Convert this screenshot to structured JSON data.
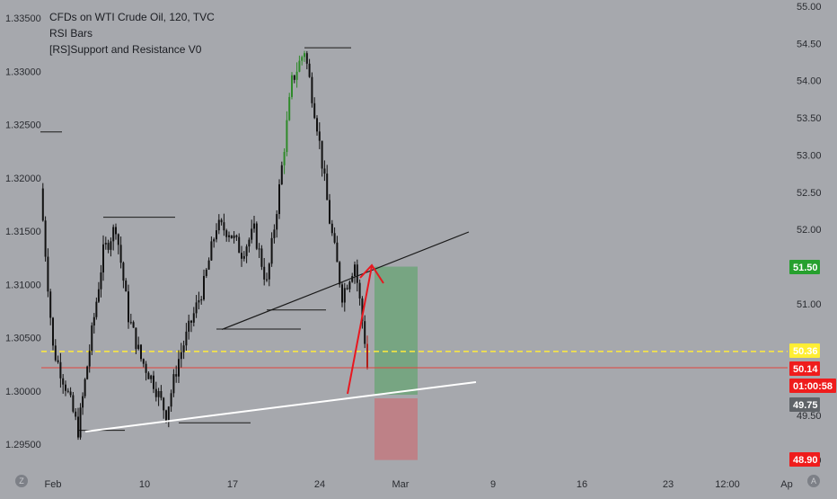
{
  "legend": {
    "title": "CFDs on WTI Crude Oil, 120, TVC",
    "indicator_1": "RSI Bars",
    "indicator_2": "[RS]Support and Resistance V0"
  },
  "colors": {
    "background": "#a6a8ad",
    "candle": "#111111",
    "candle_up_overbought": "#2f8a2a",
    "candle_down_oversold": "#b0201a",
    "trendline": "#1a1a1a",
    "support_line": "#ffffff",
    "alert_line": "#ffeb3b",
    "price_line": "#e0443d",
    "profit_zone": "#6fa47a",
    "loss_zone": "#c27a80",
    "arrow": "#e8171f",
    "tag_green": "#26a02e",
    "tag_yellow": "#ffee33",
    "tag_red": "#ef1c1c",
    "tag_gray": "#5f6368"
  },
  "icons": {
    "left_corner": "tradingview-z-icon",
    "right_corner": "auto-scale-icon"
  },
  "chart_data": {
    "type": "candlestick",
    "title": "CFDs on WTI Crude Oil, 120, TVC",
    "x_ticks": [
      "Feb",
      "10",
      "17",
      "24",
      "Mar",
      "9",
      "16",
      "23",
      "12:00",
      "Ap"
    ],
    "left_axis": {
      "ticks": [
        "1.33500",
        "1.33000",
        "1.32500",
        "1.32000",
        "1.31500",
        "1.31000",
        "1.30500",
        "1.30000",
        "1.29500"
      ],
      "range": [
        1.2935,
        1.3362
      ]
    },
    "right_axis": {
      "ticks": [
        "55.00",
        "54.50",
        "54.00",
        "53.50",
        "53.00",
        "52.50",
        "52.00",
        "51.00",
        "49.50",
        "48.90"
      ],
      "range": [
        48.77,
        55.05
      ]
    },
    "price_path": [
      {
        "date": "Jan 31",
        "price": 1.319
      },
      {
        "date": "Feb 1",
        "price": 1.304
      },
      {
        "date": "Feb 2",
        "price": 1.3005
      },
      {
        "date": "Feb 3",
        "price": 1.2963
      },
      {
        "date": "Feb 5",
        "price": 1.313
      },
      {
        "date": "Feb 6",
        "price": 1.3155
      },
      {
        "date": "Feb 7",
        "price": 1.307
      },
      {
        "date": "Feb 8",
        "price": 1.303
      },
      {
        "date": "Feb 9",
        "price": 1.3008
      },
      {
        "date": "Feb 10",
        "price": 1.2978
      },
      {
        "date": "Feb 11",
        "price": 1.303
      },
      {
        "date": "Feb 12",
        "price": 1.3065
      },
      {
        "date": "Feb 13",
        "price": 1.31
      },
      {
        "date": "Feb 14",
        "price": 1.3155
      },
      {
        "date": "Feb 15",
        "price": 1.315
      },
      {
        "date": "Feb 16",
        "price": 1.313
      },
      {
        "date": "Feb 17",
        "price": 1.315
      },
      {
        "date": "Feb 18",
        "price": 1.31
      },
      {
        "date": "Feb 19",
        "price": 1.319
      },
      {
        "date": "Feb 20",
        "price": 1.329
      },
      {
        "date": "Feb 21",
        "price": 1.332
      },
      {
        "date": "Feb 22",
        "price": 1.325
      },
      {
        "date": "Feb 23",
        "price": 1.316
      },
      {
        "date": "Feb 24",
        "price": 1.309
      },
      {
        "date": "Feb 25",
        "price": 1.312
      },
      {
        "date": "Feb 26",
        "price": 1.303
      },
      {
        "date": "Feb 26",
        "price": 1.3022
      }
    ],
    "resistance_levels": [
      {
        "from": "Jan 31",
        "to": "Feb 1",
        "price": 1.3243
      },
      {
        "from": "Feb 5",
        "to": "Feb 10",
        "price": 1.3163
      },
      {
        "from": "Feb 21",
        "to": "Feb 24",
        "price": 1.3322
      },
      {
        "from": "Feb 18",
        "to": "Feb 22",
        "price": 1.3076
      },
      {
        "from": "Feb 14",
        "to": "Feb 20",
        "price": 1.3058
      },
      {
        "from": "Feb 11",
        "to": "Feb 16",
        "price": 1.297
      },
      {
        "from": "Feb 3",
        "to": "Feb 6",
        "price": 1.2963
      }
    ],
    "trendlines": [
      {
        "name": "resistance",
        "from": {
          "date": "Feb 14",
          "price": 1.3061
        },
        "to": {
          "date": "Mar 7",
          "price": 1.315
        }
      },
      {
        "name": "support",
        "from": {
          "date": "Feb 3",
          "price": 1.2963
        },
        "to": {
          "date": "Mar 7",
          "price": 1.3011
        }
      }
    ],
    "long_position": {
      "entry_left": 50.14,
      "target": 51.5,
      "stop": 48.9,
      "start": "Feb 26",
      "end": "Mar 1"
    },
    "price_tags": [
      {
        "label": "51.50",
        "value": 51.5,
        "color": "green"
      },
      {
        "label": "50.36",
        "value": 50.36,
        "color": "yellow"
      },
      {
        "label": "50.14",
        "value": 50.14,
        "color": "red"
      },
      {
        "label": "01:00:58",
        "value": 49.93,
        "color": "red"
      },
      {
        "label": "49.75",
        "value": 49.75,
        "color": "gray"
      },
      {
        "label": "48.90",
        "value": 48.9,
        "color": "red"
      }
    ],
    "alert_level": 50.36,
    "last_price": 50.14,
    "grid": false
  }
}
